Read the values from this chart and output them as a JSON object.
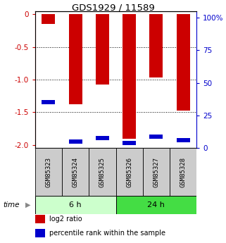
{
  "title": "GDS1929 / 11589",
  "samples": [
    "GSM85323",
    "GSM85324",
    "GSM85325",
    "GSM85326",
    "GSM85327",
    "GSM85328"
  ],
  "log2_ratios": [
    -0.15,
    -1.38,
    -1.08,
    -1.9,
    -0.97,
    -1.47
  ],
  "percentile_ranks": [
    35,
    5,
    8,
    4,
    9,
    6
  ],
  "groups": [
    {
      "label": "6 h",
      "indices": [
        0,
        1,
        2
      ],
      "color": "#ccffcc"
    },
    {
      "label": "24 h",
      "indices": [
        3,
        4,
        5
      ],
      "color": "#44dd44"
    }
  ],
  "ylim_left": [
    -2.05,
    0.05
  ],
  "ylim_right": [
    0,
    105
  ],
  "left_ticks": [
    0,
    -0.5,
    -1.0,
    -1.5,
    -2.0
  ],
  "right_ticks": [
    0,
    25,
    50,
    75,
    100
  ],
  "bar_color": "#cc0000",
  "percentile_color": "#0000cc",
  "bar_width": 0.5,
  "left_tick_color": "#cc0000",
  "right_tick_color": "#0000cc",
  "legend_items": [
    {
      "label": "log2 ratio",
      "color": "#cc0000"
    },
    {
      "label": "percentile rank within the sample",
      "color": "#0000cc"
    }
  ],
  "label_box_color": "#cccccc",
  "bg_color": "#ffffff"
}
